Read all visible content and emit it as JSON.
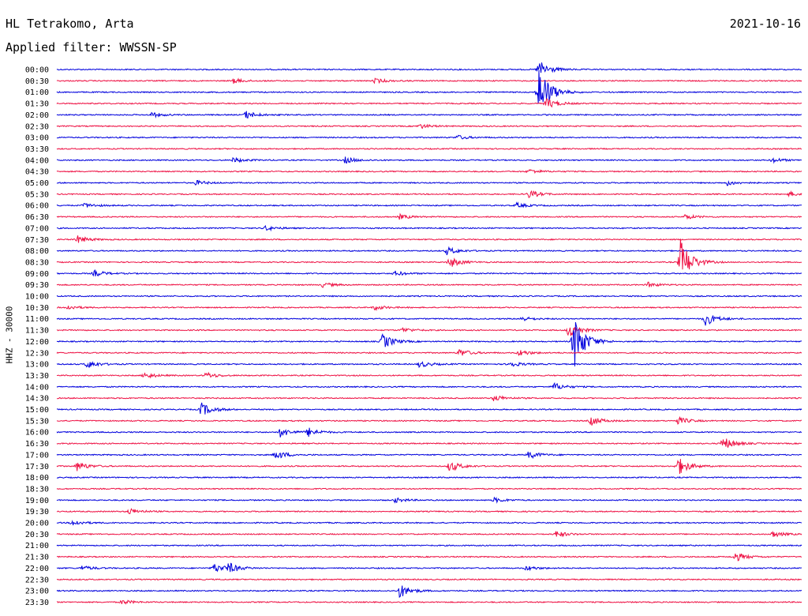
{
  "header": {
    "station": "HL Tetrakomo, Arta",
    "filter": "Applied filter: WWSSN-SP",
    "date": "2021-10-16"
  },
  "chart_data": {
    "type": "line",
    "title": "HL Tetrakomo, Arta",
    "subtitle": "Applied filter: WWSSN-SP",
    "date": "2021-10-16",
    "ylabel": "HHZ - 30000",
    "xlabel": "",
    "row_labels": [
      "00:00",
      "00:30",
      "01:00",
      "01:30",
      "02:00",
      "02:30",
      "03:00",
      "03:30",
      "04:00",
      "04:30",
      "05:00",
      "05:30",
      "06:00",
      "06:30",
      "07:00",
      "07:30",
      "08:00",
      "08:30",
      "09:00",
      "09:30",
      "10:00",
      "10:30",
      "11:00",
      "11:30",
      "12:00",
      "12:30",
      "13:00",
      "13:30",
      "14:00",
      "14:30",
      "15:00",
      "15:30",
      "16:00",
      "16:30",
      "17:00",
      "17:30",
      "18:00",
      "18:30",
      "19:00",
      "19:30",
      "20:00",
      "20:30",
      "21:00",
      "21:30",
      "22:00",
      "22:30",
      "23:00",
      "23:30"
    ],
    "row_duration_minutes": 30,
    "series_colors": [
      "#0000dd",
      "#ee1144"
    ],
    "grid": false,
    "events": [
      {
        "row": 0,
        "minute": 19.4,
        "amp": 12
      },
      {
        "row": 1,
        "minute": 7.1,
        "amp": 3
      },
      {
        "row": 1,
        "minute": 12.8,
        "amp": 3
      },
      {
        "row": 2,
        "minute": 19.4,
        "amp": 35
      },
      {
        "row": 3,
        "minute": 19.7,
        "amp": 7
      },
      {
        "row": 4,
        "minute": 3.8,
        "amp": 3
      },
      {
        "row": 4,
        "minute": 7.6,
        "amp": 5
      },
      {
        "row": 5,
        "minute": 14.6,
        "amp": 3
      },
      {
        "row": 6,
        "minute": 16.1,
        "amp": 3
      },
      {
        "row": 8,
        "minute": 7.1,
        "amp": 3
      },
      {
        "row": 8,
        "minute": 11.6,
        "amp": 4
      },
      {
        "row": 8,
        "minute": 28.8,
        "amp": 3
      },
      {
        "row": 9,
        "minute": 19,
        "amp": 3
      },
      {
        "row": 10,
        "minute": 5.6,
        "amp": 3
      },
      {
        "row": 10,
        "minute": 27.0,
        "amp": 3
      },
      {
        "row": 11,
        "minute": 19,
        "amp": 5
      },
      {
        "row": 11,
        "minute": 29.5,
        "amp": 3
      },
      {
        "row": 12,
        "minute": 1.1,
        "amp": 3
      },
      {
        "row": 12,
        "minute": 18.5,
        "amp": 3
      },
      {
        "row": 13,
        "minute": 13.8,
        "amp": 3
      },
      {
        "row": 13,
        "minute": 25.3,
        "amp": 3
      },
      {
        "row": 14,
        "minute": 8.4,
        "amp": 3
      },
      {
        "row": 15,
        "minute": 0.8,
        "amp": 5
      },
      {
        "row": 16,
        "minute": 15.7,
        "amp": 5
      },
      {
        "row": 17,
        "minute": 15.8,
        "amp": 7
      },
      {
        "row": 17,
        "minute": 25.1,
        "amp": 30
      },
      {
        "row": 18,
        "minute": 1.5,
        "amp": 4
      },
      {
        "row": 18,
        "minute": 13.6,
        "amp": 3
      },
      {
        "row": 19,
        "minute": 10.7,
        "amp": 3
      },
      {
        "row": 19,
        "minute": 23.8,
        "amp": 3
      },
      {
        "row": 21,
        "minute": 0.4,
        "amp": 3
      },
      {
        "row": 21,
        "minute": 12.8,
        "amp": 3
      },
      {
        "row": 22,
        "minute": 18.7,
        "amp": 3
      },
      {
        "row": 22,
        "minute": 26.1,
        "amp": 9
      },
      {
        "row": 23,
        "minute": 13.9,
        "amp": 3
      },
      {
        "row": 23,
        "minute": 20.6,
        "amp": 10
      },
      {
        "row": 24,
        "minute": 13.1,
        "amp": 10
      },
      {
        "row": 24,
        "minute": 20.8,
        "amp": 38
      },
      {
        "row": 25,
        "minute": 16.2,
        "amp": 5
      },
      {
        "row": 25,
        "minute": 18.6,
        "amp": 4
      },
      {
        "row": 26,
        "minute": 1.2,
        "amp": 5
      },
      {
        "row": 26,
        "minute": 14.6,
        "amp": 4
      },
      {
        "row": 26,
        "minute": 18.2,
        "amp": 4
      },
      {
        "row": 27,
        "minute": 3.5,
        "amp": 4
      },
      {
        "row": 27,
        "minute": 6.0,
        "amp": 4
      },
      {
        "row": 28,
        "minute": 20.0,
        "amp": 5
      },
      {
        "row": 29,
        "minute": 17.6,
        "amp": 4
      },
      {
        "row": 30,
        "minute": 5.8,
        "amp": 9
      },
      {
        "row": 31,
        "minute": 21.5,
        "amp": 6
      },
      {
        "row": 31,
        "minute": 25.0,
        "amp": 5
      },
      {
        "row": 32,
        "minute": 9.0,
        "amp": 6
      },
      {
        "row": 32,
        "minute": 10.1,
        "amp": 6
      },
      {
        "row": 33,
        "minute": 26.8,
        "amp": 9
      },
      {
        "row": 34,
        "minute": 8.8,
        "amp": 6
      },
      {
        "row": 34,
        "minute": 19.0,
        "amp": 5
      },
      {
        "row": 35,
        "minute": 0.8,
        "amp": 6
      },
      {
        "row": 35,
        "minute": 15.8,
        "amp": 7
      },
      {
        "row": 35,
        "minute": 25.0,
        "amp": 12
      },
      {
        "row": 38,
        "minute": 13.6,
        "amp": 3
      },
      {
        "row": 38,
        "minute": 17.6,
        "amp": 3
      },
      {
        "row": 39,
        "minute": 2.9,
        "amp": 4
      },
      {
        "row": 40,
        "minute": 0.6,
        "amp": 4
      },
      {
        "row": 41,
        "minute": 20.1,
        "amp": 4
      },
      {
        "row": 41,
        "minute": 28.8,
        "amp": 4
      },
      {
        "row": 43,
        "minute": 27.3,
        "amp": 6
      },
      {
        "row": 44,
        "minute": 1.0,
        "amp": 3
      },
      {
        "row": 44,
        "minute": 6.3,
        "amp": 6
      },
      {
        "row": 44,
        "minute": 6.9,
        "amp": 6
      },
      {
        "row": 44,
        "minute": 18.9,
        "amp": 3
      },
      {
        "row": 46,
        "minute": 13.8,
        "amp": 9
      },
      {
        "row": 47,
        "minute": 2.6,
        "amp": 3
      }
    ]
  }
}
